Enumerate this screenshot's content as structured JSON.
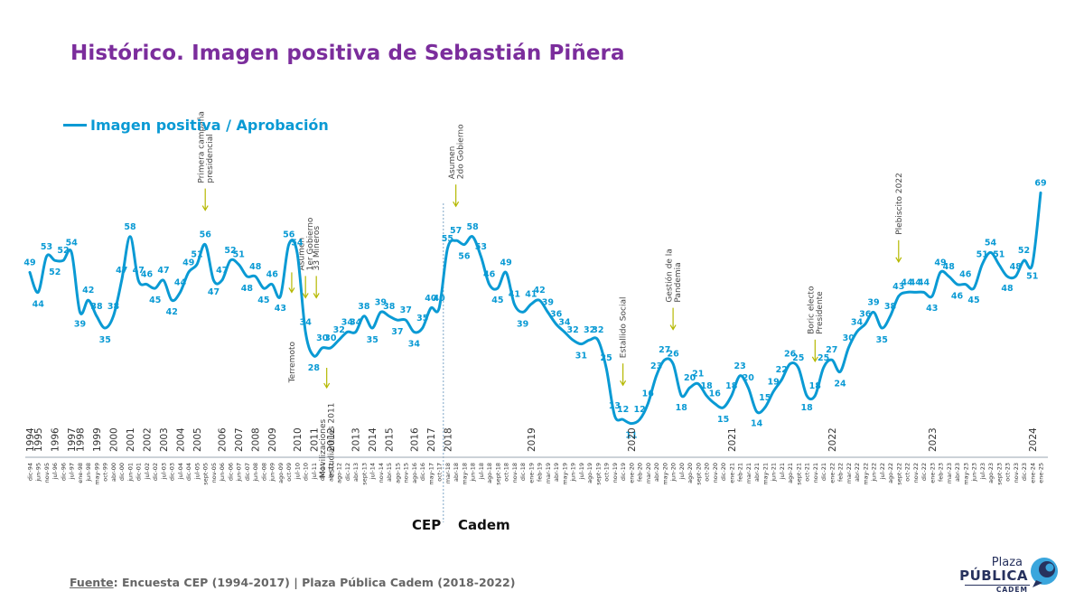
{
  "title": "Histórico. Imagen positiva de Sebastián Piñera",
  "legend": {
    "label": "Imagen positiva / Aprobación"
  },
  "source": {
    "prefix": "Fuente",
    "text": ": Encuesta CEP (1994-2017) | Plaza Pública Cadem (2018-2022)"
  },
  "eras": {
    "left": "CEP",
    "right": "Cadem"
  },
  "logo": {
    "line1": "Plaza",
    "line2": "PÚBLICA",
    "line3": "CADEM"
  },
  "colors": {
    "line": "#0a9ad4",
    "title": "#7b2d9c",
    "annotation_arrow": "#b5b800",
    "divider": "#7fa7c7"
  },
  "chart_data": {
    "type": "line",
    "ylabel": "",
    "xlabel": "",
    "series": [
      {
        "name": "Imagen positiva / Aprobación",
        "x": [
          "dic-94",
          "jun-95",
          "nov-95",
          "jul-96",
          "dic-96",
          "jul-97",
          "ene-98",
          "jun-98",
          "may-99",
          "oct-99",
          "abr-00",
          "dic-00",
          "jun-01",
          "dic-01",
          "jul-02",
          "dic-02",
          "jul-03",
          "dic-03",
          "jul-04",
          "dic-04",
          "jul-05",
          "sept-05",
          "nov-05",
          "jun-06",
          "dic-06",
          "jun-07",
          "dic-07",
          "jun-08",
          "dic-08",
          "jun-09",
          "ago-09",
          "oct-09",
          "jul-10",
          "dic-10",
          "jul-11",
          "dic-11",
          "abr-12",
          "ago-12",
          "dic-12",
          "abr-13",
          "sept-13",
          "jul-14",
          "nov-14",
          "abr-15",
          "ago-15",
          "nov-15",
          "ago-16",
          "dic-16",
          "may-17",
          "oct-17",
          "mar-18",
          "abr-18",
          "may-18",
          "jun-18",
          "jul-18",
          "ago-18",
          "sept-18",
          "oct-18",
          "nov-18",
          "dic-18",
          "ene-19",
          "feb-19",
          "mar-19",
          "abr-19",
          "may-19",
          "jun-19",
          "jul-19",
          "ago-19",
          "sept-19",
          "oct-19",
          "nov-19",
          "dic-19",
          "ene-20",
          "feb-20",
          "mar-20",
          "abr-20",
          "may-20",
          "jun-20",
          "jul-20",
          "ago-20",
          "sept-20",
          "oct-20",
          "nov-20",
          "dic-20",
          "ene-21",
          "feb-21",
          "mar-21",
          "abr-21",
          "may-21",
          "jun-21",
          "jul-21",
          "ago-21",
          "sept-21",
          "oct-21",
          "nov-21",
          "dic-21",
          "ene-22",
          "feb-22",
          "mar-22",
          "abr-22",
          "may-22",
          "jun-22",
          "jul-22",
          "ago-22",
          "sept-22",
          "oct-22",
          "nov-22",
          "dic-22",
          "ene-23",
          "feb-23",
          "mar-23",
          "abr-23",
          "may-23",
          "jun-23",
          "jul-23",
          "ago-23",
          "sept-23",
          "oct-23",
          "nov-23",
          "dic-23",
          "ene-24",
          "ene-25"
        ],
        "values": [
          49,
          44,
          53,
          52,
          52,
          54,
          39,
          42,
          38,
          35,
          38,
          47,
          58,
          47,
          46,
          45,
          47,
          42,
          44,
          49,
          51,
          56,
          47,
          47,
          52,
          51,
          48,
          48,
          45,
          46,
          43,
          56,
          54,
          34,
          28,
          30,
          30,
          32,
          34,
          34,
          38,
          35,
          39,
          38,
          37,
          37,
          34,
          35,
          40,
          40,
          55,
          57,
          56,
          58,
          53,
          46,
          45,
          49,
          41,
          39,
          41,
          42,
          39,
          36,
          34,
          32,
          31,
          32,
          32,
          25,
          13,
          12,
          11,
          12,
          16,
          23,
          27,
          26,
          18,
          20,
          21,
          18,
          16,
          15,
          18,
          23,
          20,
          14,
          15,
          19,
          22,
          26,
          25,
          18,
          18,
          25,
          27,
          24,
          30,
          34,
          36,
          39,
          35,
          38,
          43,
          44,
          44,
          44,
          43,
          49,
          48,
          46,
          46,
          45,
          51,
          54,
          51,
          48,
          48,
          52,
          51,
          69
        ]
      }
    ],
    "year_labels": [
      "1994",
      "1995",
      "1996",
      "1997",
      "1998",
      "1999",
      "2000",
      "2001",
      "2002",
      "2003",
      "2004",
      "2005",
      "2006",
      "2007",
      "2008",
      "2009",
      "2010",
      "2011",
      "2012",
      "2013",
      "2014",
      "2015",
      "2016",
      "2017",
      "2018",
      "2019",
      "2020",
      "2021",
      "2022",
      "2023",
      "2024"
    ],
    "annotations": [
      {
        "lines": [
          "Primera campaña",
          "presidencial"
        ],
        "at": "sept-05"
      },
      {
        "lines": [
          "Terremoto"
        ],
        "at": "jul-10"
      },
      {
        "lines": [
          "Asumen",
          "1er Gobierno"
        ],
        "at": "dic-10"
      },
      {
        "lines": [
          "33 Mineros"
        ],
        "at": "dic-10"
      },
      {
        "lines": [
          "Movilizaciones",
          "estudiantiles 2011"
        ],
        "at": "dic-11"
      },
      {
        "lines": [
          "Asumen",
          "2do Gobierno"
        ],
        "at": "abr-18"
      },
      {
        "lines": [
          "Estallido Social"
        ],
        "at": "dic-19"
      },
      {
        "lines": [
          "Gestión de la",
          "Pandemia"
        ],
        "at": "jun-20"
      },
      {
        "lines": [
          "Boric electo",
          "Presidente"
        ],
        "at": "nov-21"
      },
      {
        "lines": [
          "Plebiscito 2022"
        ],
        "at": "sept-22"
      }
    ],
    "divider_after": "oct-17",
    "grid": false,
    "legend_position": "top-left"
  }
}
